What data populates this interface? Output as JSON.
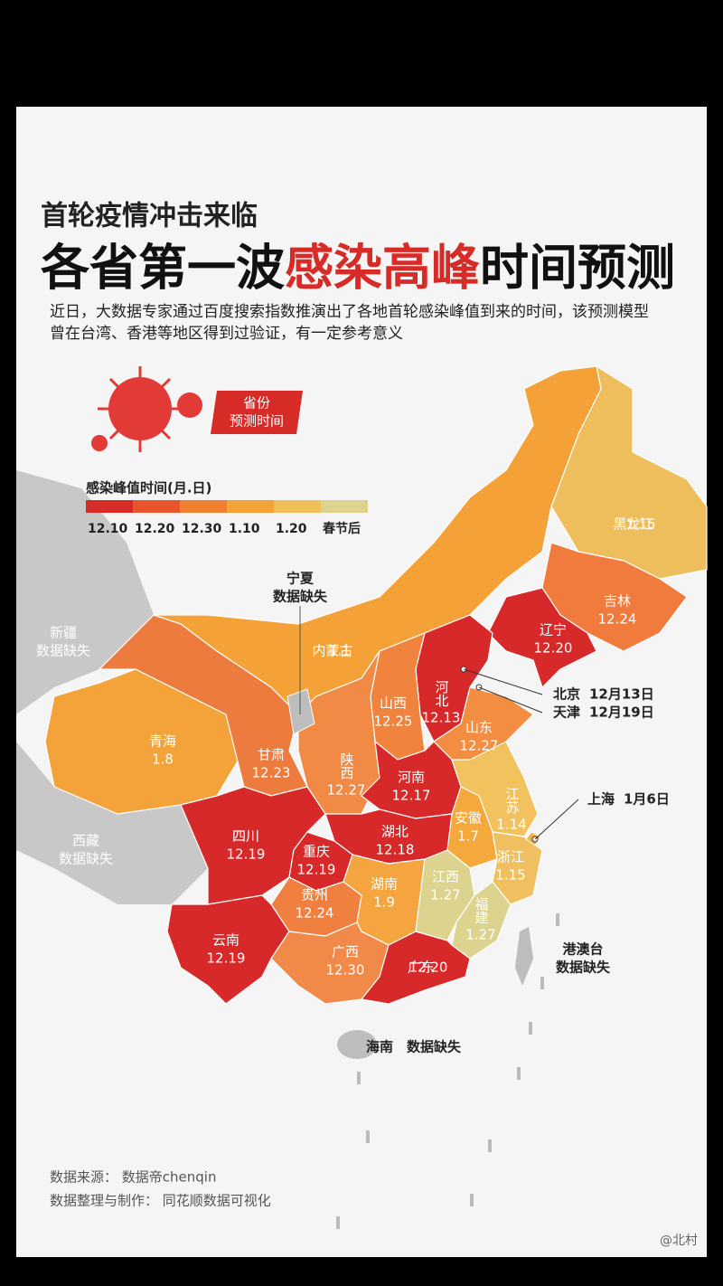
{
  "header": {
    "subtitle": "首轮疫情冲击来临",
    "title_parts": [
      "各省第一波",
      "感染高峰",
      "时间预测"
    ],
    "description": [
      "近日，大数据专家通过百度搜索指数推演出了各地首轮感染峰值到来的时间，该预测模型",
      "曾在台湾、香港等地区得到过验证，有一定参考意义"
    ]
  },
  "badge": [
    "省份",
    "预测时间"
  ],
  "legend": {
    "title": "感染峰值时间(月.日)",
    "items": [
      {
        "label": "12.10",
        "color": "#d62b27"
      },
      {
        "label": "12.20",
        "color": "#e8552c"
      },
      {
        "label": "12.30",
        "color": "#f07f30"
      },
      {
        "label": "1.10",
        "color": "#f3a235"
      },
      {
        "label": "1.20",
        "color": "#f0bf58"
      },
      {
        "label": "春节后",
        "color": "#dcd48e"
      }
    ]
  },
  "provinces": [
    {
      "name": "黑龙江",
      "date": "1.15",
      "color": "#efbe5c"
    },
    {
      "name": "吉林",
      "date": "12.24",
      "color": "#f07b3c"
    },
    {
      "name": "辽宁",
      "date": "12.20",
      "color": "#d8292a"
    },
    {
      "name": "内蒙古",
      "date": "1.1",
      "color": "#f4a137"
    },
    {
      "name": "河北",
      "date": "12.13",
      "color": "#d8292a"
    },
    {
      "name": "山西",
      "date": "12.25",
      "color": "#f0843e"
    },
    {
      "name": "山东",
      "date": "12.27",
      "color": "#f28d42"
    },
    {
      "name": "青海",
      "date": "1.8",
      "color": "#f4a33a"
    },
    {
      "name": "甘肃",
      "date": "12.23",
      "color": "#ee7b3e"
    },
    {
      "name": "陕西",
      "date": "12.27",
      "color": "#f08a44"
    },
    {
      "name": "河南",
      "date": "12.17",
      "color": "#d8292a"
    },
    {
      "name": "江苏",
      "date": "1.14",
      "color": "#f2c25e"
    },
    {
      "name": "安徽",
      "date": "1.7",
      "color": "#f5a83c"
    },
    {
      "name": "四川",
      "date": "12.19",
      "color": "#d8292a"
    },
    {
      "name": "湖北",
      "date": "12.18",
      "color": "#d8292a"
    },
    {
      "name": "重庆",
      "date": "12.19",
      "color": "#d8292a"
    },
    {
      "name": "浙江",
      "date": "1.15",
      "color": "#f0c060"
    },
    {
      "name": "湖南",
      "date": "1.9",
      "color": "#f5a540"
    },
    {
      "name": "江西",
      "date": "1.27",
      "color": "#dcd48e"
    },
    {
      "name": "贵州",
      "date": "12.24",
      "color": "#f08040"
    },
    {
      "name": "福建",
      "date": "1.27",
      "color": "#dcd48e"
    },
    {
      "name": "云南",
      "date": "12.19",
      "color": "#d8292a"
    },
    {
      "name": "广西",
      "date": "12.30",
      "color": "#f18a48"
    },
    {
      "name": "广东",
      "date": "12.20",
      "color": "#d8292a"
    }
  ],
  "missing": [
    {
      "name": "新疆",
      "note": "数据缺失"
    },
    {
      "name": "西藏",
      "note": "数据缺失"
    },
    {
      "name": "宁夏",
      "note": "数据缺失"
    },
    {
      "name": "港澳台",
      "note": "数据缺失"
    },
    {
      "name": "海南",
      "note": "数据缺失"
    }
  ],
  "callouts": [
    {
      "name": "北京",
      "date": "12月13日"
    },
    {
      "name": "天津",
      "date": "12月19日"
    },
    {
      "name": "上海",
      "date": "1月6日"
    }
  ],
  "footer": [
    "数据来源： 数据帝chenqin",
    "数据整理与制作： 同花顺数据可视化"
  ],
  "watermark": "@北村"
}
